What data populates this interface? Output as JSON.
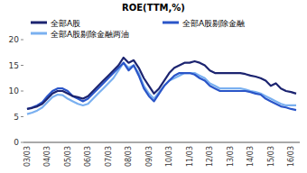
{
  "chart_data": {
    "type": "line",
    "title": "ROE(TTM,%)",
    "categories": [
      "03/03",
      null,
      null,
      null,
      "04/03",
      null,
      null,
      null,
      "05/03",
      null,
      null,
      null,
      "06/03",
      null,
      null,
      null,
      "07/03",
      null,
      null,
      null,
      "08/03",
      null,
      null,
      null,
      "09/03",
      null,
      null,
      null,
      "10/03",
      null,
      null,
      null,
      "11/03",
      null,
      null,
      null,
      "12/03",
      null,
      null,
      null,
      "13/03",
      null,
      null,
      null,
      "14/03",
      null,
      null,
      null,
      "15/03",
      null,
      null,
      null,
      "16/03",
      null
    ],
    "series": [
      {
        "name": "全部A股",
        "color": "#1c2470",
        "values": [
          6.5,
          6.7,
          7,
          7.5,
          8.5,
          9.5,
          10,
          10,
          9.5,
          9,
          8.8,
          8.5,
          9,
          10,
          11,
          12,
          13,
          14,
          15,
          16.5,
          15.5,
          16,
          14.5,
          12.5,
          11,
          9.5,
          10.5,
          12,
          13.5,
          14.5,
          15,
          15.5,
          15.5,
          15.8,
          15.5,
          15,
          14,
          13.5,
          13.5,
          13.5,
          13.5,
          13.5,
          13.5,
          13.3,
          13,
          12.8,
          12.5,
          12,
          11,
          11.5,
          10.5,
          10,
          9.8,
          9.5
        ]
      },
      {
        "name": "全部A股剔除金融",
        "color": "#2a55c8",
        "values": [
          6.5,
          6.8,
          7.2,
          7.8,
          9,
          10,
          10.5,
          10.5,
          10,
          9,
          8.5,
          8,
          8.5,
          9.5,
          10.5,
          11.5,
          12.5,
          13.5,
          14.5,
          15.5,
          14,
          15,
          13,
          10.5,
          9,
          8,
          9.5,
          11,
          12,
          13,
          13.5,
          13.5,
          13.5,
          13.2,
          12.5,
          12,
          11,
          10.5,
          10,
          10,
          10,
          10,
          10,
          10,
          9.8,
          9.5,
          9.3,
          8.5,
          8,
          7.5,
          7,
          6.8,
          6.5,
          6.3
        ]
      },
      {
        "name": "全部A股剔除金融两油",
        "color": "#7ab0f0",
        "values": [
          5.5,
          5.8,
          6.2,
          6.8,
          7.8,
          8.8,
          9.3,
          9.2,
          8.5,
          8,
          7.5,
          7.2,
          7.5,
          8.5,
          9.5,
          10.5,
          11.5,
          12.5,
          14,
          15.5,
          14.5,
          15,
          13.5,
          11,
          9.5,
          8.5,
          9.8,
          11,
          12,
          12.5,
          13,
          13.5,
          13.5,
          13.5,
          13,
          12.5,
          11.5,
          11,
          10.5,
          10.5,
          10.5,
          10.5,
          10.5,
          10.3,
          10,
          9.8,
          9.5,
          9,
          8.5,
          8,
          7.5,
          7.2,
          7.2,
          7.2
        ]
      }
    ],
    "ylim": [
      0,
      20
    ],
    "yticks": [
      0,
      5,
      10,
      15,
      20
    ],
    "grid": false
  }
}
